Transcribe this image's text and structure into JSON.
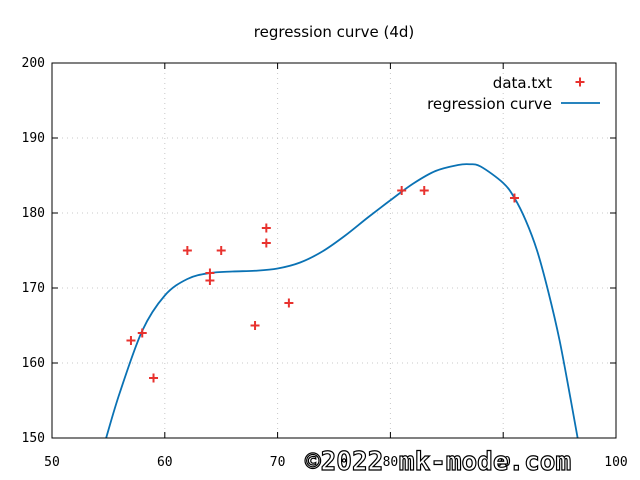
{
  "chart_data": {
    "type": "scatter",
    "title": "regression curve (4d)",
    "xlabel": "",
    "ylabel": "",
    "xlim": [
      50,
      100
    ],
    "ylim": [
      150,
      200
    ],
    "xticks": [
      50,
      60,
      70,
      80,
      90,
      100
    ],
    "yticks": [
      150,
      160,
      170,
      180,
      190,
      200
    ],
    "grid": true,
    "legend_position": "top-right",
    "series": [
      {
        "name": "data.txt",
        "type": "scatter",
        "marker": "plus",
        "color": "#e8322e",
        "points": [
          [
            57,
            163
          ],
          [
            58,
            164
          ],
          [
            59,
            158
          ],
          [
            62,
            175
          ],
          [
            64,
            172
          ],
          [
            64,
            171
          ],
          [
            65,
            175
          ],
          [
            68,
            165
          ],
          [
            69,
            178
          ],
          [
            69,
            176
          ],
          [
            71,
            168
          ],
          [
            81,
            183
          ],
          [
            83,
            183
          ],
          [
            91,
            182
          ]
        ]
      },
      {
        "name": "regression curve",
        "type": "line",
        "color": "#0a72b4",
        "points": [
          [
            54.8,
            150.0
          ],
          [
            56,
            156.0
          ],
          [
            58,
            164.3
          ],
          [
            60,
            169.0
          ],
          [
            62,
            171.2
          ],
          [
            64,
            172.0
          ],
          [
            66,
            172.2
          ],
          [
            68,
            172.3
          ],
          [
            70,
            172.6
          ],
          [
            72,
            173.4
          ],
          [
            74,
            174.9
          ],
          [
            76,
            177.0
          ],
          [
            78,
            179.4
          ],
          [
            80,
            181.7
          ],
          [
            82,
            183.9
          ],
          [
            84,
            185.6
          ],
          [
            86,
            186.4
          ],
          [
            87,
            186.5
          ],
          [
            88,
            186.2
          ],
          [
            90,
            184.0
          ],
          [
            91,
            182.0
          ],
          [
            92,
            179.0
          ],
          [
            93,
            175.0
          ],
          [
            94,
            169.5
          ],
          [
            95,
            163.0
          ],
          [
            96,
            155.0
          ],
          [
            96.6,
            150.0
          ]
        ]
      }
    ]
  },
  "watermark": "©2022 mk-mode.com"
}
